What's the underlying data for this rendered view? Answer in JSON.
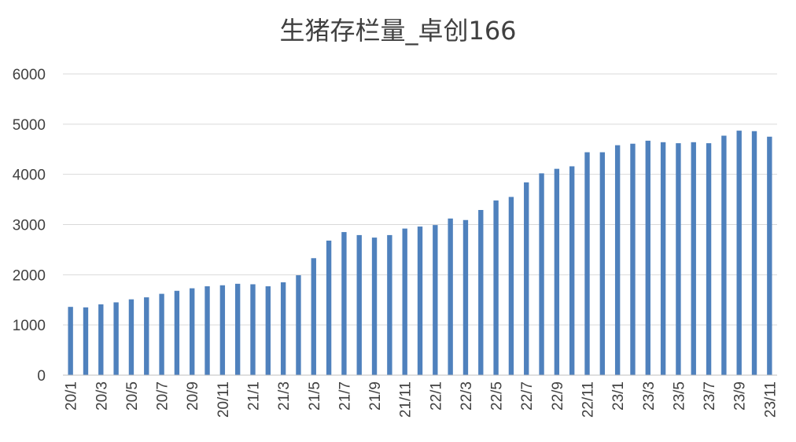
{
  "chart_data": {
    "type": "bar",
    "title": "生猪存栏量_卓创166",
    "xlabel": "",
    "ylabel": "",
    "ylim": [
      0,
      6000
    ],
    "yticks": [
      0,
      1000,
      2000,
      3000,
      4000,
      5000,
      6000
    ],
    "grid": true,
    "legend": "none",
    "color": "#4f81bd",
    "categories": [
      "20/1",
      "20/2",
      "20/3",
      "20/4",
      "20/5",
      "20/6",
      "20/7",
      "20/8",
      "20/9",
      "20/10",
      "20/11",
      "20/12",
      "21/1",
      "21/2",
      "21/3",
      "21/4",
      "21/5",
      "21/6",
      "21/7",
      "21/8",
      "21/9",
      "21/10",
      "21/11",
      "21/12",
      "22/1",
      "22/2",
      "22/3",
      "22/4",
      "22/5",
      "22/6",
      "22/7",
      "22/8",
      "22/9",
      "22/10",
      "22/11",
      "22/12",
      "23/1",
      "23/2",
      "23/3",
      "23/4",
      "23/5",
      "23/6",
      "23/7",
      "23/8",
      "23/9",
      "23/10",
      "23/11"
    ],
    "tick_labels": [
      "20/1",
      "20/3",
      "20/5",
      "20/7",
      "20/9",
      "20/11",
      "21/1",
      "21/3",
      "21/5",
      "21/7",
      "21/9",
      "21/11",
      "22/1",
      "22/3",
      "22/5",
      "22/7",
      "22/9",
      "22/11",
      "23/1",
      "23/3",
      "23/5",
      "23/7",
      "23/9",
      "23/11"
    ],
    "values": [
      1360,
      1350,
      1410,
      1450,
      1510,
      1550,
      1620,
      1680,
      1730,
      1770,
      1790,
      1820,
      1810,
      1770,
      1850,
      1990,
      2330,
      2680,
      2850,
      2790,
      2740,
      2790,
      2920,
      2960,
      2990,
      3120,
      3090,
      3290,
      3480,
      3550,
      3840,
      4020,
      4110,
      4160,
      4440,
      4440,
      4580,
      4610,
      4670,
      4640,
      4620,
      4640,
      4620,
      4770,
      4870,
      4860,
      4750
    ]
  }
}
